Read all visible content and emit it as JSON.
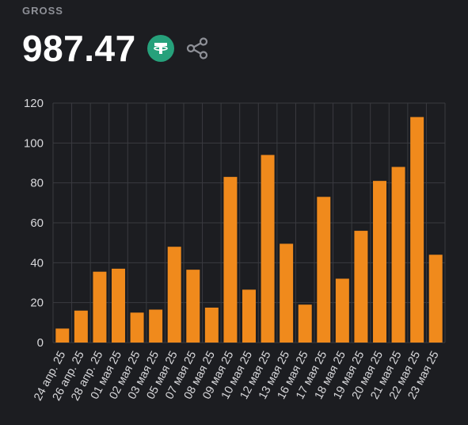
{
  "header": {
    "label": "GROSS",
    "total": "987.47",
    "token_icon": "tether-icon",
    "share_icon": "share-icon"
  },
  "colors": {
    "background": "#1c1d21",
    "bar": "#f08a1c",
    "grid": "#3a3b40",
    "axis_text": "#d9d9dc",
    "token": "#26a17b"
  },
  "chart_data": {
    "type": "bar",
    "categories": [
      "24 апр. 25",
      "26 апр. 25",
      "28 апр. 25",
      "01 мая 25",
      "02 мая 25",
      "03 мая 25",
      "05 мая 25",
      "07 мая 25",
      "08 мая 25",
      "09 мая 25",
      "10 мая 25",
      "12 мая 25",
      "13 мая 25",
      "16 мая 25",
      "17 мая 25",
      "18 мая 25",
      "19 мая 25",
      "20 мая 25",
      "21 мая 25",
      "22 мая 25",
      "23 мая 25"
    ],
    "values": [
      7,
      16,
      35.5,
      37,
      15,
      16.5,
      48,
      36.5,
      17.5,
      83,
      26.5,
      94,
      49.5,
      19,
      73,
      32,
      56,
      81,
      88,
      113,
      44
    ],
    "yticks": [
      0,
      20,
      40,
      60,
      80,
      100,
      120
    ],
    "ylim": [
      0,
      120
    ],
    "grid": true,
    "title": "",
    "xlabel": "",
    "ylabel": ""
  }
}
